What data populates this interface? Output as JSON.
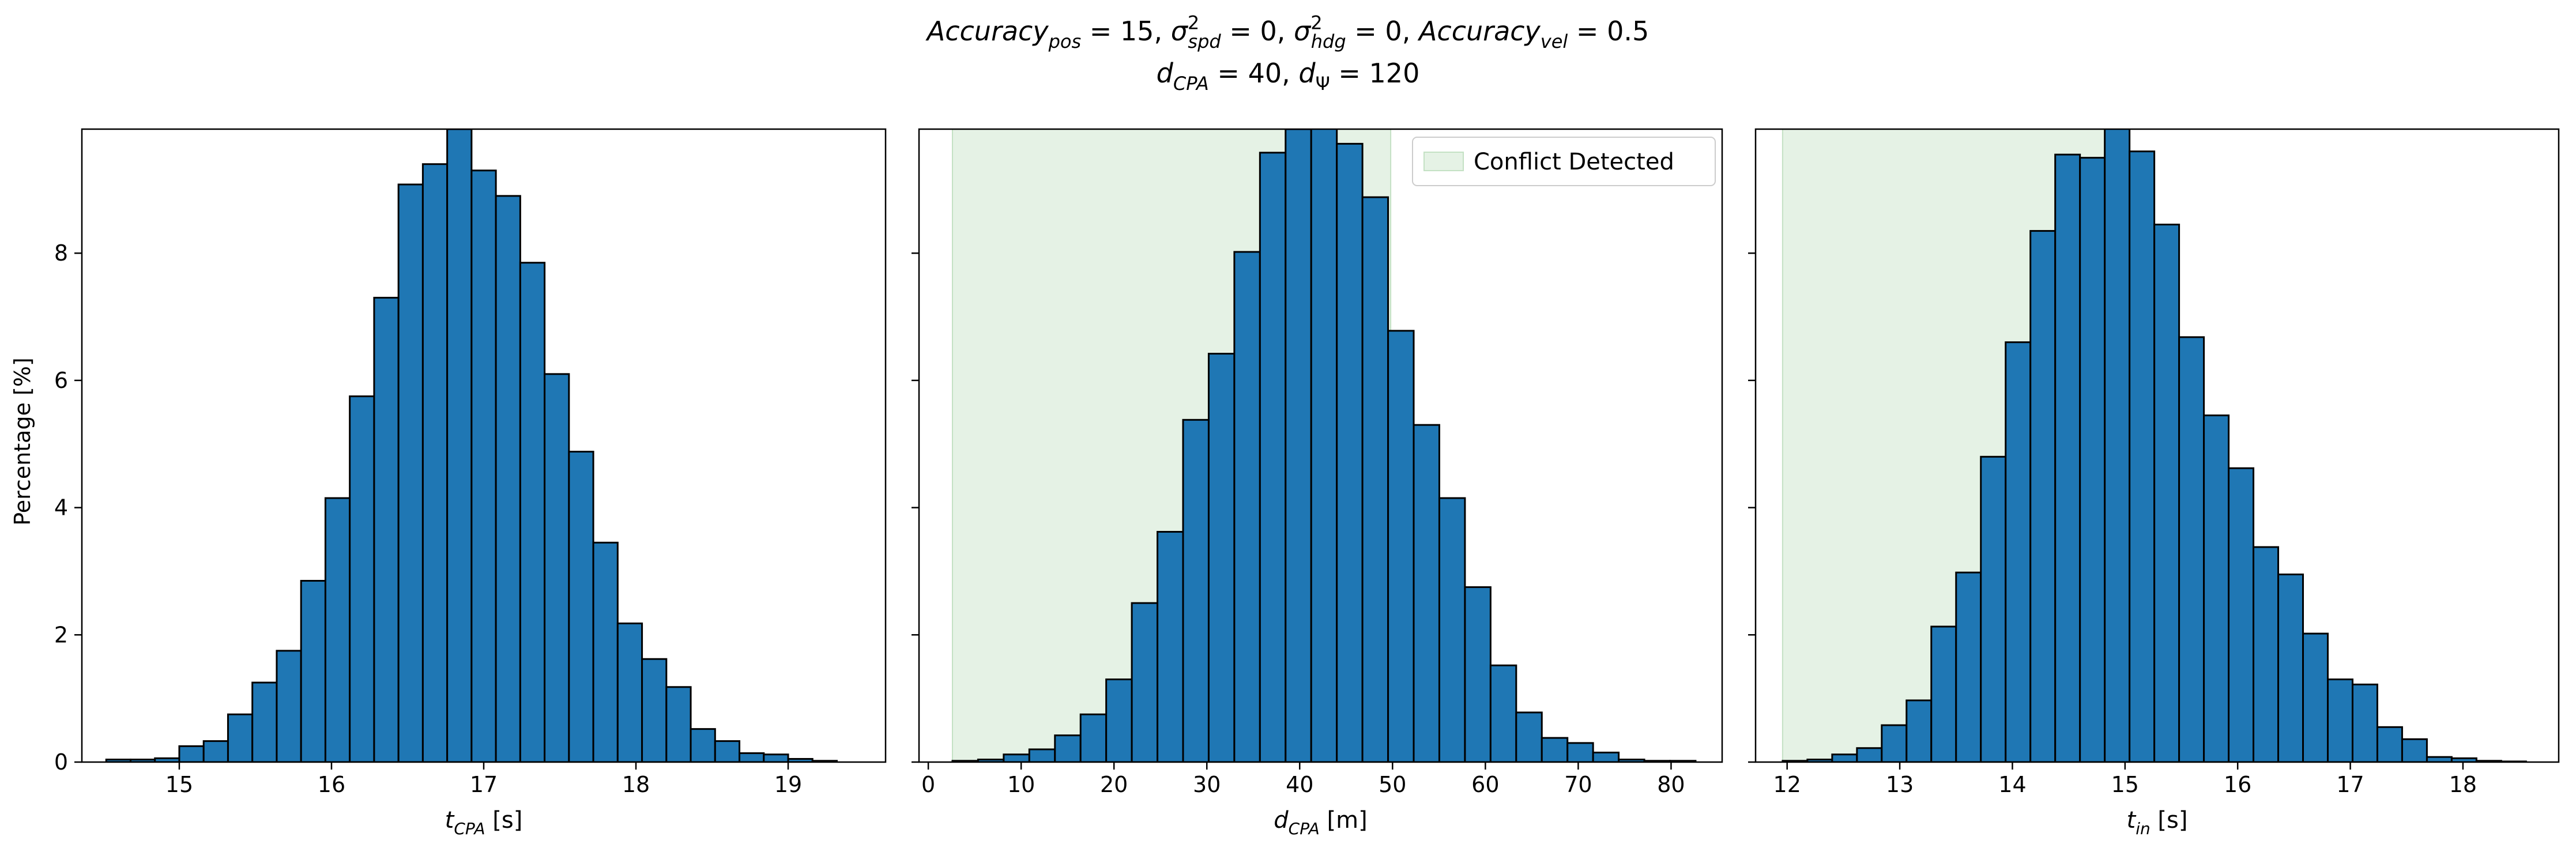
{
  "title": {
    "line1_parts": [
      {
        "t": "Accuracy",
        "style": "italic"
      },
      {
        "t": "pos",
        "style": "italic-sub"
      },
      {
        "t": " = 15, ",
        "style": "normal"
      },
      {
        "t": "σ",
        "style": "italic"
      },
      {
        "t": "2",
        "style": "sup"
      },
      {
        "t": "spd",
        "style": "italic-sub"
      },
      {
        "t": " = 0, ",
        "style": "normal"
      },
      {
        "t": "σ",
        "style": "italic"
      },
      {
        "t": "2",
        "style": "sup"
      },
      {
        "t": "hdg",
        "style": "italic-sub"
      },
      {
        "t": " = 0, ",
        "style": "normal"
      },
      {
        "t": "Accuracy",
        "style": "italic"
      },
      {
        "t": "vel",
        "style": "italic-sub"
      },
      {
        "t": " = 0.5",
        "style": "normal"
      }
    ],
    "line2_parts": [
      {
        "t": "d",
        "style": "italic"
      },
      {
        "t": "CPA",
        "style": "italic-sub"
      },
      {
        "t": " = 40, ",
        "style": "normal"
      },
      {
        "t": "d",
        "style": "italic"
      },
      {
        "t": "Ψ",
        "style": "sub"
      },
      {
        "t": " = 120",
        "style": "normal"
      }
    ]
  },
  "ylabel": "Percentage [%]",
  "colors": {
    "bar_fill": "#1f77b4",
    "bar_edge": "#000000",
    "shade": "#e5f2e5",
    "shade_edge": "#c4e1c4"
  },
  "legend": {
    "label": "Conflict Detected",
    "placement": "upper right of middle panel"
  },
  "chart_data": [
    {
      "type": "bar",
      "subtype": "histogram",
      "xlabel_parts": [
        {
          "t": "t",
          "style": "italic"
        },
        {
          "t": "CPA",
          "style": "italic-sub"
        },
        {
          "t": " [s]",
          "style": "normal"
        }
      ],
      "xlim": [
        14.36,
        19.64
      ],
      "ylim": [
        0,
        9.95
      ],
      "xticks": [
        15,
        16,
        17,
        18,
        19
      ],
      "yticks": [
        0,
        2,
        4,
        6,
        8
      ],
      "bin_start": 14.52,
      "bin_width": 0.16,
      "values": [
        0.04,
        0.04,
        0.06,
        0.25,
        0.33,
        0.75,
        1.25,
        1.75,
        2.85,
        4.15,
        5.75,
        7.3,
        9.08,
        9.4,
        9.95,
        9.3,
        8.9,
        7.85,
        6.1,
        4.88,
        3.45,
        2.18,
        1.62,
        1.18,
        0.52,
        0.33,
        0.14,
        0.12,
        0.05,
        0.02
      ]
    },
    {
      "type": "bar",
      "subtype": "histogram",
      "xlabel_parts": [
        {
          "t": "d",
          "style": "italic"
        },
        {
          "t": "CPA",
          "style": "italic-sub"
        },
        {
          "t": " [m]",
          "style": "normal"
        }
      ],
      "xlim": [
        -1.0,
        85.5
      ],
      "ylim": [
        0,
        9.95
      ],
      "xticks": [
        0,
        10,
        20,
        30,
        40,
        50,
        60,
        70,
        80
      ],
      "yticks": [
        0,
        2,
        4,
        6,
        8
      ],
      "shaded_region": [
        2.6,
        49.8
      ],
      "bin_start": 2.6,
      "bin_width": 2.76,
      "values": [
        0.02,
        0.04,
        0.12,
        0.2,
        0.42,
        0.75,
        1.3,
        2.5,
        3.62,
        5.38,
        6.42,
        8.02,
        9.58,
        9.95,
        9.98,
        9.72,
        8.88,
        6.78,
        5.3,
        4.15,
        2.75,
        1.52,
        0.78,
        0.38,
        0.3,
        0.15,
        0.04,
        0.02,
        0.02
      ]
    },
    {
      "type": "bar",
      "subtype": "histogram",
      "xlabel_parts": [
        {
          "t": "t",
          "style": "italic"
        },
        {
          "t": "in",
          "style": "italic-sub"
        },
        {
          "t": " [s]",
          "style": "normal"
        }
      ],
      "xlim": [
        11.72,
        18.85
      ],
      "ylim": [
        0,
        9.95
      ],
      "xticks": [
        12,
        13,
        14,
        15,
        16,
        17,
        18
      ],
      "yticks": [
        0,
        2,
        4,
        6,
        8
      ],
      "shaded_region": [
        11.96,
        15.0
      ],
      "bin_start": 11.96,
      "bin_width": 0.22,
      "values": [
        0.02,
        0.04,
        0.12,
        0.22,
        0.58,
        0.97,
        2.13,
        2.98,
        4.8,
        6.6,
        8.35,
        9.55,
        9.5,
        9.98,
        9.6,
        8.45,
        6.68,
        5.45,
        4.62,
        3.38,
        2.95,
        2.02,
        1.3,
        1.22,
        0.55,
        0.36,
        0.08,
        0.06,
        0.02,
        0.01
      ]
    }
  ]
}
